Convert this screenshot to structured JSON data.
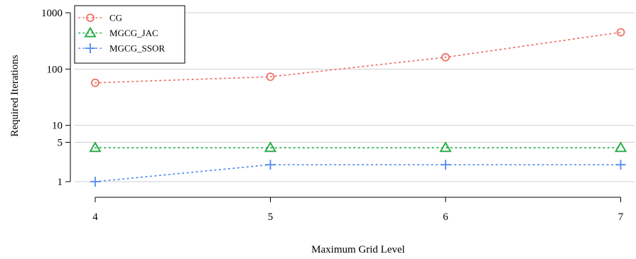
{
  "chart_data": {
    "type": "line",
    "title": "",
    "xlabel": "Maximum Grid Level",
    "ylabel": "Required Iterations",
    "x": [
      4,
      5,
      6,
      7
    ],
    "x_ticks": [
      "4",
      "5",
      "6",
      "7"
    ],
    "y_scale": "log",
    "y_ticks": [
      1,
      5,
      10,
      100,
      1000
    ],
    "y_tick_labels": [
      "1",
      "5",
      "10",
      "100",
      "1000"
    ],
    "grid": "horizontal",
    "legend_position": "top-left",
    "series": [
      {
        "name": "CG",
        "values": [
          57,
          73,
          162,
          450
        ],
        "color": "#ee7366",
        "marker": "circle"
      },
      {
        "name": "MGCG_JAC",
        "values": [
          4,
          4,
          4,
          4
        ],
        "color": "#22aa44",
        "marker": "triangle"
      },
      {
        "name": "MGCG_SSOR",
        "values": [
          1,
          2,
          2,
          2
        ],
        "color": "#5b8ff0",
        "marker": "plus"
      }
    ]
  }
}
